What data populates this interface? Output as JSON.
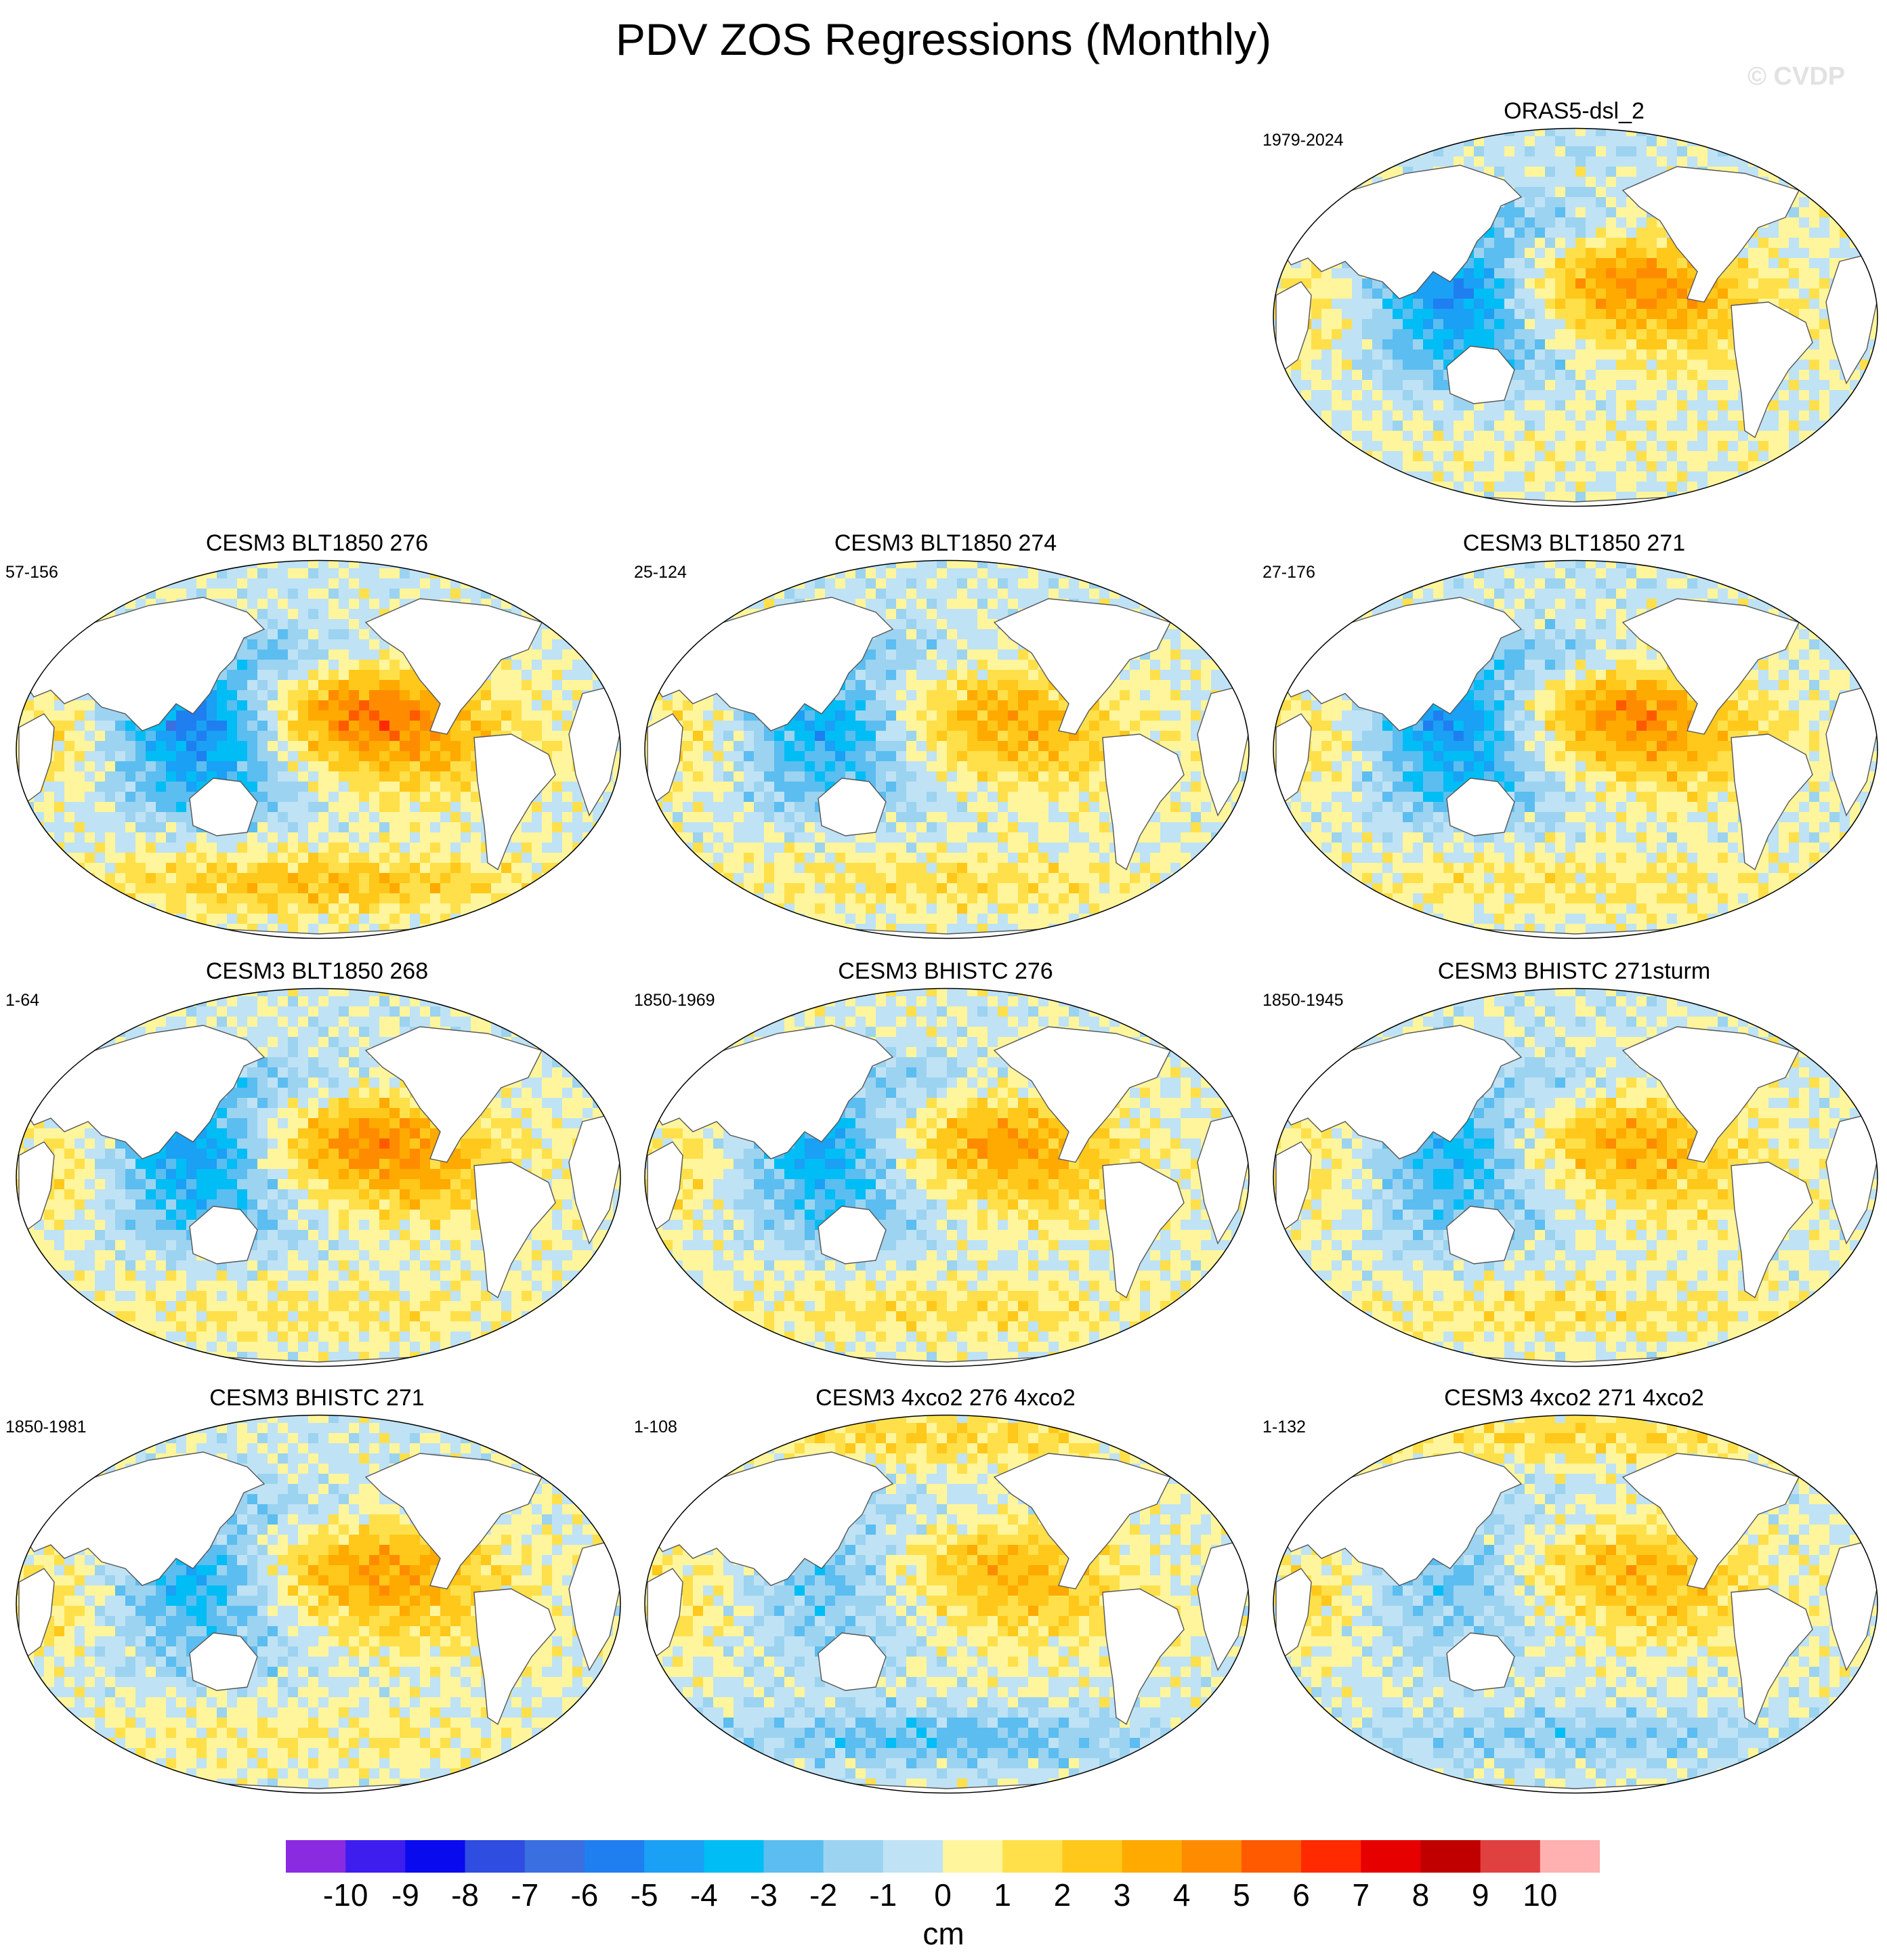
{
  "title": "PDV ZOS Regressions (Monthly)",
  "watermark": "© CVDP",
  "panels": [
    {
      "title": "ORAS5-dsl_2",
      "period": "1979-2024",
      "variant": 0
    },
    {
      "title": "CESM3 BLT1850 276",
      "period": "57-156",
      "variant": 1
    },
    {
      "title": "CESM3 BLT1850 274",
      "period": "25-124",
      "variant": 2
    },
    {
      "title": "CESM3 BLT1850 271",
      "period": "27-176",
      "variant": 3
    },
    {
      "title": "CESM3 BLT1850 268",
      "period": "1-64",
      "variant": 4
    },
    {
      "title": "CESM3 BHISTC 276",
      "period": "1850-1969",
      "variant": 5
    },
    {
      "title": "CESM3 BHISTC 271sturm",
      "period": "1850-1945",
      "variant": 6
    },
    {
      "title": "CESM3 BHISTC 271",
      "period": "1850-1981",
      "variant": 7
    },
    {
      "title": "CESM3 4xco2 276 4xco2",
      "period": "1-108",
      "variant": 8
    },
    {
      "title": "CESM3 4xco2 271 4xco2",
      "period": "1-132",
      "variant": 9
    }
  ],
  "colorbar": {
    "units": "cm",
    "colors": [
      "#8a2be2",
      "#3d1eef",
      "#0a0aee",
      "#2f4de0",
      "#3a6fe2",
      "#1f7ff0",
      "#1aa0f5",
      "#00bdf5",
      "#5cbdf0",
      "#9cd3f0",
      "#bfe2f5",
      "#fff59c",
      "#ffe04a",
      "#ffc81a",
      "#ffaa00",
      "#ff8c00",
      "#ff5a00",
      "#ff2a00",
      "#e60000",
      "#c00000",
      "#e04040",
      "#ffb0b0"
    ],
    "labels": [
      "-10",
      "-9",
      "-8",
      "-7",
      "-6",
      "-5",
      "-4",
      "-3",
      "-2",
      "-1",
      "0",
      "1",
      "2",
      "3",
      "4",
      "5",
      "6",
      "7",
      "8",
      "9",
      "10"
    ]
  }
}
